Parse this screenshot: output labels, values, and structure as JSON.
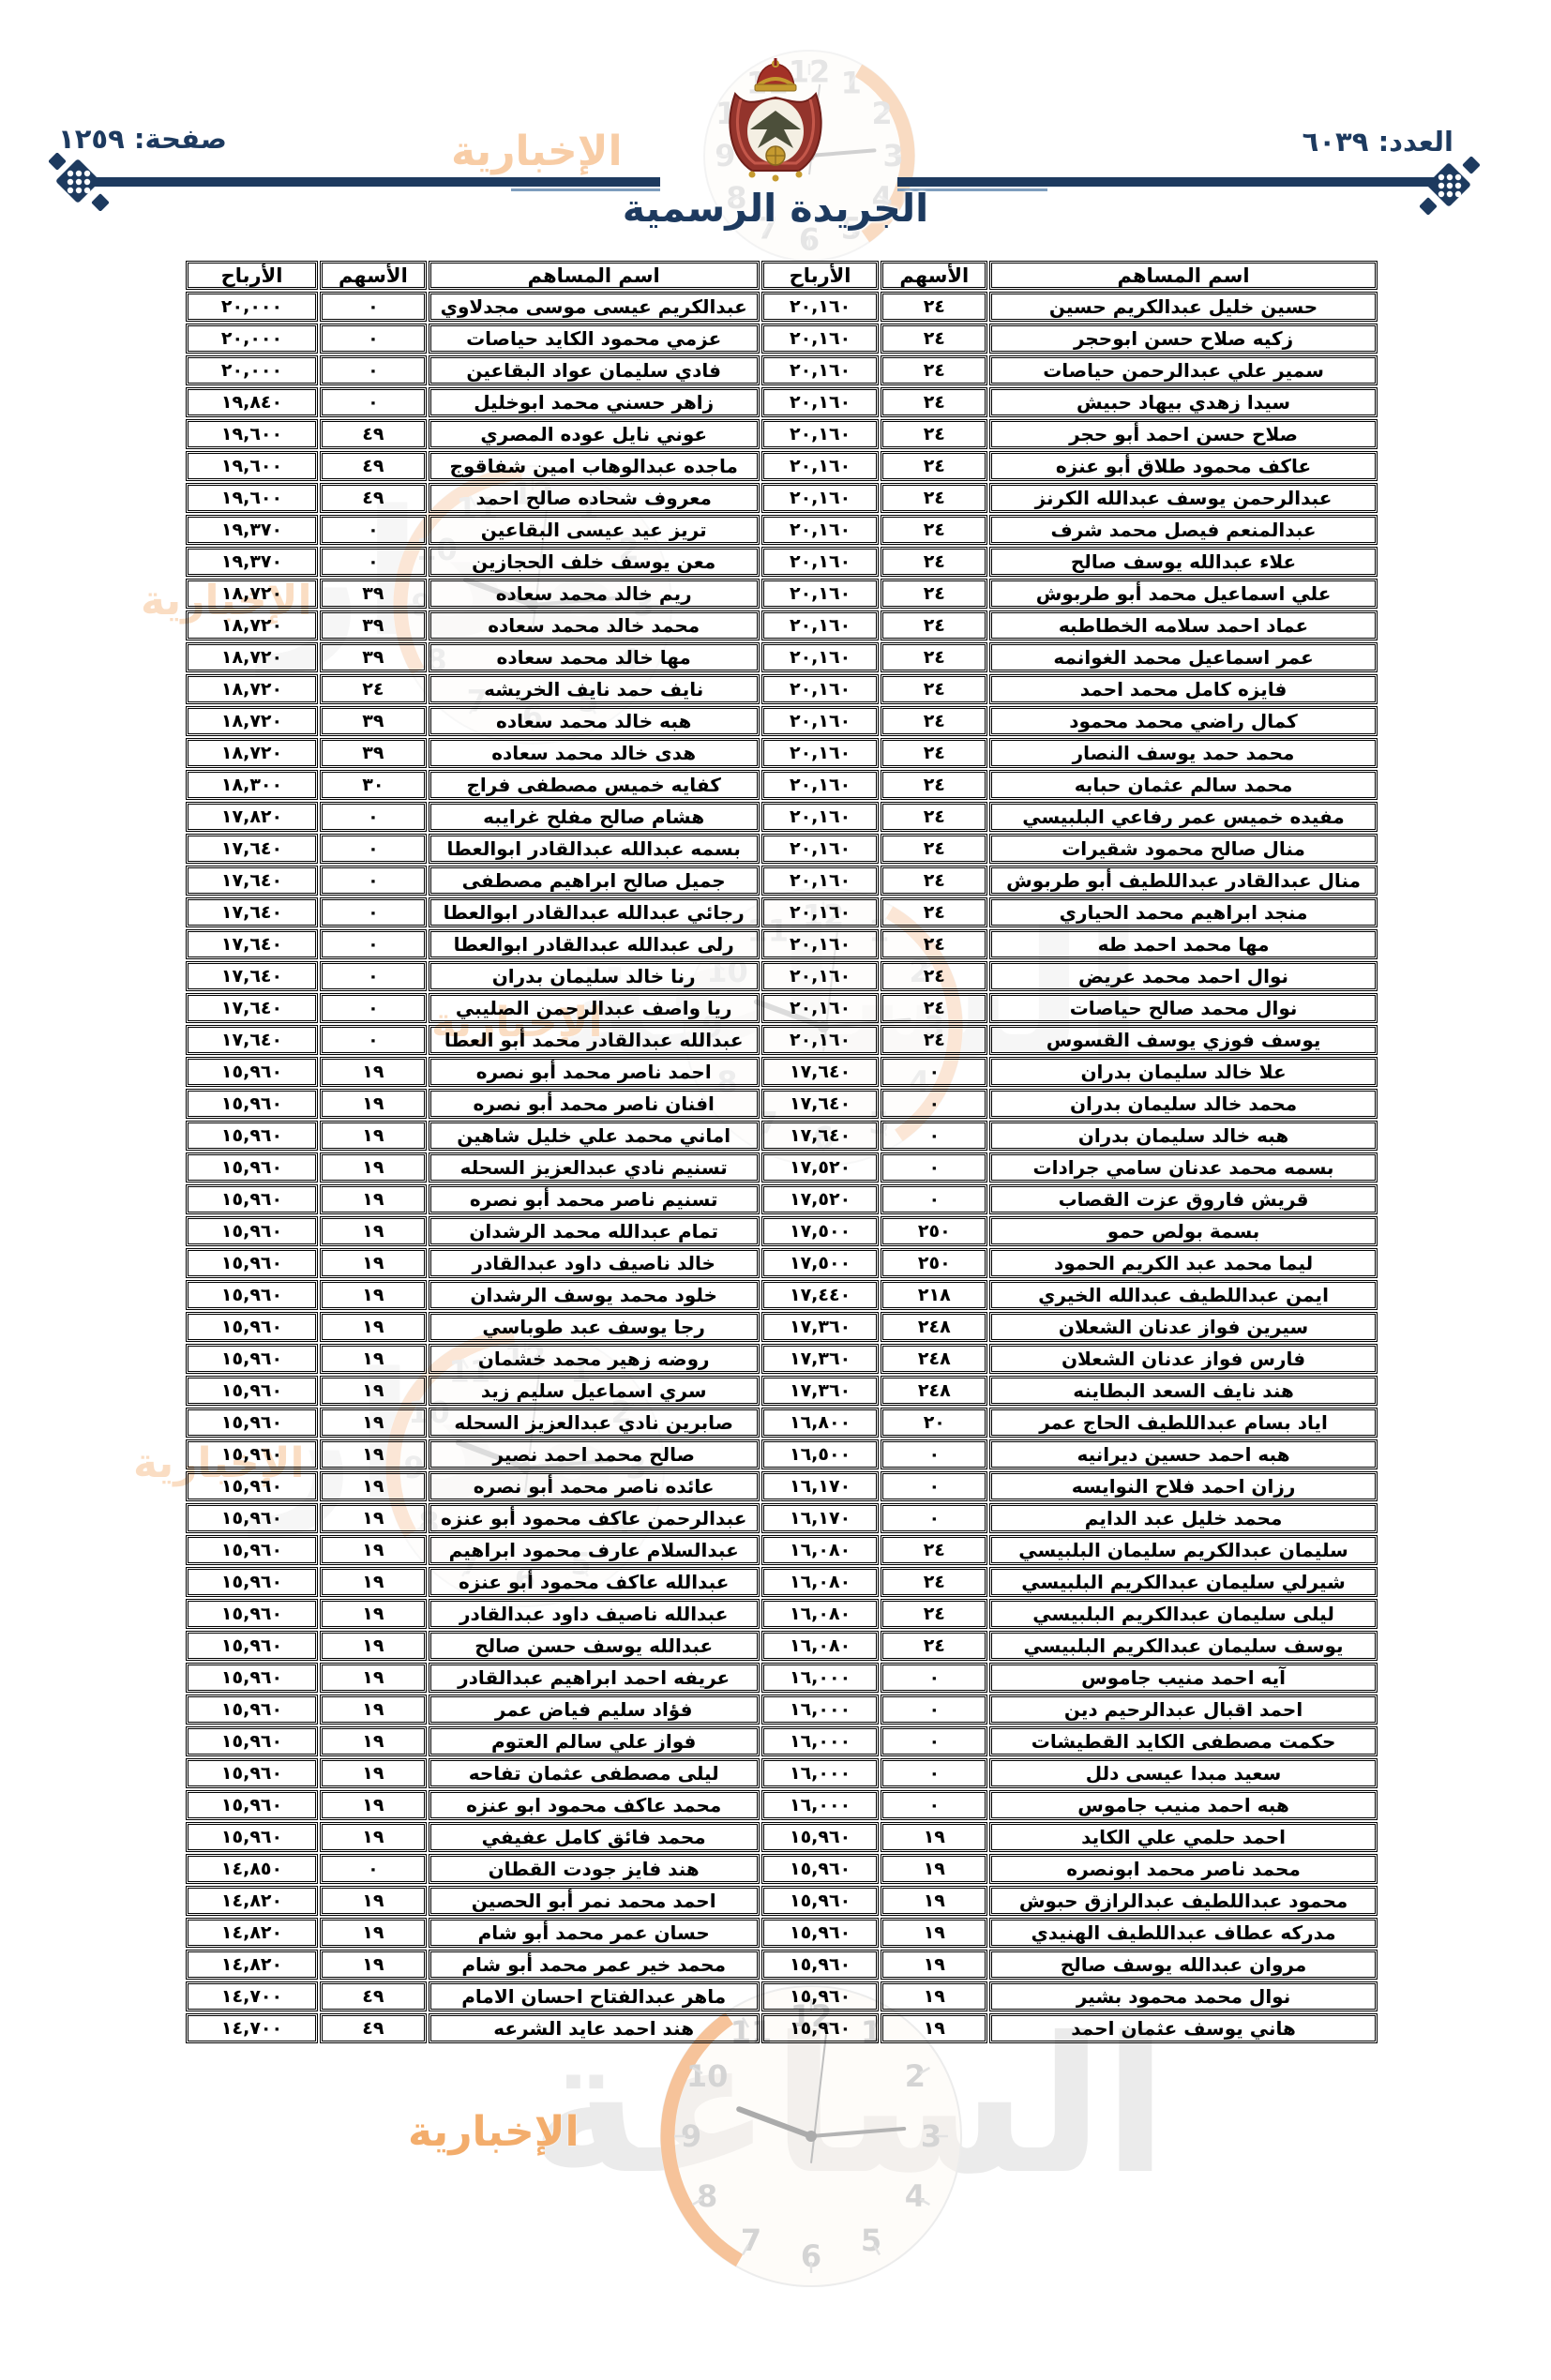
{
  "header": {
    "issue_label": "العدد: ٦٠٣٩",
    "page_label": "صفحة: ١٢٥٩",
    "gazette_title": "الجريدة الرسمية"
  },
  "watermark": {
    "brand_word_1": "مدار",
    "brand_word_2": "الساعة",
    "brand_sub": "الإخبارية",
    "clock_numerals": [
      "12",
      "1",
      "2",
      "3",
      "4",
      "5",
      "6",
      "7",
      "8",
      "9",
      "10",
      "11"
    ]
  },
  "colors": {
    "navy": "#1d3a5f",
    "table_text": "#000000",
    "watermark_orange": "#f0923c",
    "watermark_gray": "#c4c4c4"
  },
  "table": {
    "col_headers": {
      "name": "اسم المساهم",
      "shares": "الأسهم",
      "profits": "الأرباح"
    },
    "rows": [
      {
        "r_name": "حسين خليل عبدالكريم حسين",
        "r_shares": "٢٤",
        "r_profits": "٢٠,١٦٠",
        "l_name": "عبدالكريم عيسى موسى مجدلاوي",
        "l_shares": "٠",
        "l_profits": "٢٠,٠٠٠"
      },
      {
        "r_name": "زكيه صلاح حسن ابوحجر",
        "r_shares": "٢٤",
        "r_profits": "٢٠,١٦٠",
        "l_name": "عزمي محمود الكايد حياصات",
        "l_shares": "٠",
        "l_profits": "٢٠,٠٠٠"
      },
      {
        "r_name": "سمير علي عبدالرحمن حياصات",
        "r_shares": "٢٤",
        "r_profits": "٢٠,١٦٠",
        "l_name": "فادي سليمان عواد البقاعين",
        "l_shares": "٠",
        "l_profits": "٢٠,٠٠٠"
      },
      {
        "r_name": "سيدا زهدي بيهاد حبيش",
        "r_shares": "٢٤",
        "r_profits": "٢٠,١٦٠",
        "l_name": "زاهر حسني محمد ابوخليل",
        "l_shares": "٠",
        "l_profits": "١٩,٨٤٠"
      },
      {
        "r_name": "صلاح حسن احمد أبو حجر",
        "r_shares": "٢٤",
        "r_profits": "٢٠,١٦٠",
        "l_name": "عوني نايل عوده المصري",
        "l_shares": "٤٩",
        "l_profits": "١٩,٦٠٠"
      },
      {
        "r_name": "عاكف محمود طلاق أبو عنزه",
        "r_shares": "٢٤",
        "r_profits": "٢٠,١٦٠",
        "l_name": "ماجده عبدالوهاب امين شفاقوج",
        "l_shares": "٤٩",
        "l_profits": "١٩,٦٠٠"
      },
      {
        "r_name": "عبدالرحمن يوسف عبدالله الكرنز",
        "r_shares": "٢٤",
        "r_profits": "٢٠,١٦٠",
        "l_name": "معروف شحاده صالح احمد",
        "l_shares": "٤٩",
        "l_profits": "١٩,٦٠٠"
      },
      {
        "r_name": "عبدالمنعم فيصل محمد شرف",
        "r_shares": "٢٤",
        "r_profits": "٢٠,١٦٠",
        "l_name": "تريز عيد عيسى البقاعين",
        "l_shares": "٠",
        "l_profits": "١٩,٣٧٠"
      },
      {
        "r_name": "علاء عبدالله يوسف صالح",
        "r_shares": "٢٤",
        "r_profits": "٢٠,١٦٠",
        "l_name": "معن يوسف خلف الحجازين",
        "l_shares": "٠",
        "l_profits": "١٩,٣٧٠"
      },
      {
        "r_name": "علي اسماعيل محمد أبو طربوش",
        "r_shares": "٢٤",
        "r_profits": "٢٠,١٦٠",
        "l_name": "ريم خالد محمد سعاده",
        "l_shares": "٣٩",
        "l_profits": "١٨,٧٢٠"
      },
      {
        "r_name": "عماد احمد سلامه الخطاطبه",
        "r_shares": "٢٤",
        "r_profits": "٢٠,١٦٠",
        "l_name": "محمد خالد محمد سعاده",
        "l_shares": "٣٩",
        "l_profits": "١٨,٧٢٠"
      },
      {
        "r_name": "عمر اسماعيل محمد الغوانمه",
        "r_shares": "٢٤",
        "r_profits": "٢٠,١٦٠",
        "l_name": "مها خالد محمد سعاده",
        "l_shares": "٣٩",
        "l_profits": "١٨,٧٢٠"
      },
      {
        "r_name": "فايزه كامل محمد احمد",
        "r_shares": "٢٤",
        "r_profits": "٢٠,١٦٠",
        "l_name": "نايف حمد نايف الخريشه",
        "l_shares": "٢٤",
        "l_profits": "١٨,٧٢٠"
      },
      {
        "r_name": "كمال راضي محمد محمود",
        "r_shares": "٢٤",
        "r_profits": "٢٠,١٦٠",
        "l_name": "هبه خالد محمد سعاده",
        "l_shares": "٣٩",
        "l_profits": "١٨,٧٢٠"
      },
      {
        "r_name": "محمد حمد يوسف النصار",
        "r_shares": "٢٤",
        "r_profits": "٢٠,١٦٠",
        "l_name": "هدى خالد محمد سعاده",
        "l_shares": "٣٩",
        "l_profits": "١٨,٧٢٠"
      },
      {
        "r_name": "محمد سالم عثمان حبابه",
        "r_shares": "٢٤",
        "r_profits": "٢٠,١٦٠",
        "l_name": "كفايه خميس مصطفى فراج",
        "l_shares": "٣٠",
        "l_profits": "١٨,٣٠٠"
      },
      {
        "r_name": "مفيده خميس عمر رفاعي البلبيسي",
        "r_shares": "٢٤",
        "r_profits": "٢٠,١٦٠",
        "l_name": "هشام صالح مفلح غرايبه",
        "l_shares": "٠",
        "l_profits": "١٧,٨٢٠"
      },
      {
        "r_name": "منال صالح محمود شقيرات",
        "r_shares": "٢٤",
        "r_profits": "٢٠,١٦٠",
        "l_name": "بسمه عبدالله عبدالقادر ابوالعطا",
        "l_shares": "٠",
        "l_profits": "١٧,٦٤٠"
      },
      {
        "r_name": "منال عبدالقادر عبداللطيف أبو طربوش",
        "r_shares": "٢٤",
        "r_profits": "٢٠,١٦٠",
        "l_name": "جميل صالح ابراهيم مصطفى",
        "l_shares": "٠",
        "l_profits": "١٧,٦٤٠"
      },
      {
        "r_name": "منجد ابراهيم محمد الحياري",
        "r_shares": "٢٤",
        "r_profits": "٢٠,١٦٠",
        "l_name": "رجائي عبدالله عبدالقادر ابوالعطا",
        "l_shares": "٠",
        "l_profits": "١٧,٦٤٠"
      },
      {
        "r_name": "مها محمد احمد طه",
        "r_shares": "٢٤",
        "r_profits": "٢٠,١٦٠",
        "l_name": "رلى عبدالله عبدالقادر ابوالعطا",
        "l_shares": "٠",
        "l_profits": "١٧,٦٤٠"
      },
      {
        "r_name": "نوال احمد محمد عريض",
        "r_shares": "٢٤",
        "r_profits": "٢٠,١٦٠",
        "l_name": "رنا خالد سليمان بدران",
        "l_shares": "٠",
        "l_profits": "١٧,٦٤٠"
      },
      {
        "r_name": "نوال محمد صالح حياصات",
        "r_shares": "٢٤",
        "r_profits": "٢٠,١٦٠",
        "l_name": "ريا واصف عبدالرحمن الصليبي",
        "l_shares": "٠",
        "l_profits": "١٧,٦٤٠"
      },
      {
        "r_name": "يوسف فوزي يوسف القسوس",
        "r_shares": "٢٤",
        "r_profits": "٢٠,١٦٠",
        "l_name": "عبدالله عبدالقادر محمد أبو العطا",
        "l_shares": "٠",
        "l_profits": "١٧,٦٤٠"
      },
      {
        "r_name": "علا خالد سليمان بدران",
        "r_shares": "٠",
        "r_profits": "١٧,٦٤٠",
        "l_name": "احمد ناصر محمد أبو نصره",
        "l_shares": "١٩",
        "l_profits": "١٥,٩٦٠"
      },
      {
        "r_name": "محمد خالد سليمان بدران",
        "r_shares": "٠",
        "r_profits": "١٧,٦٤٠",
        "l_name": "افنان ناصر محمد أبو نصره",
        "l_shares": "١٩",
        "l_profits": "١٥,٩٦٠"
      },
      {
        "r_name": "هبه خالد سليمان بدران",
        "r_shares": "٠",
        "r_profits": "١٧,٦٤٠",
        "l_name": "اماني محمد علي خليل شاهين",
        "l_shares": "١٩",
        "l_profits": "١٥,٩٦٠"
      },
      {
        "r_name": "بسمه محمد عدنان سامي جرادات",
        "r_shares": "٠",
        "r_profits": "١٧,٥٢٠",
        "l_name": "تسنيم نادي عبدالعزيز السحله",
        "l_shares": "١٩",
        "l_profits": "١٥,٩٦٠"
      },
      {
        "r_name": "قريش فاروق عزت القصاب",
        "r_shares": "٠",
        "r_profits": "١٧,٥٢٠",
        "l_name": "تسنيم ناصر محمد أبو نصره",
        "l_shares": "١٩",
        "l_profits": "١٥,٩٦٠"
      },
      {
        "r_name": "بسمة بولص حمو",
        "r_shares": "٢٥٠",
        "r_profits": "١٧,٥٠٠",
        "l_name": "تمام عبدالله محمد الرشدان",
        "l_shares": "١٩",
        "l_profits": "١٥,٩٦٠"
      },
      {
        "r_name": "ليما محمد عبد الكريم الحمود",
        "r_shares": "٢٥٠",
        "r_profits": "١٧,٥٠٠",
        "l_name": "خالد ناصيف داود عبدالقادر",
        "l_shares": "١٩",
        "l_profits": "١٥,٩٦٠"
      },
      {
        "r_name": "ايمن عبداللطيف عبدالله الخيري",
        "r_shares": "٢١٨",
        "r_profits": "١٧,٤٤٠",
        "l_name": "خلود محمد يوسف الرشدان",
        "l_shares": "١٩",
        "l_profits": "١٥,٩٦٠"
      },
      {
        "r_name": "سيرين فواز عدنان الشعلان",
        "r_shares": "٢٤٨",
        "r_profits": "١٧,٣٦٠",
        "l_name": "رجا يوسف عبد طوباسي",
        "l_shares": "١٩",
        "l_profits": "١٥,٩٦٠"
      },
      {
        "r_name": "فارس فواز عدنان الشعلان",
        "r_shares": "٢٤٨",
        "r_profits": "١٧,٣٦٠",
        "l_name": "روضه زهير محمد خشمان",
        "l_shares": "١٩",
        "l_profits": "١٥,٩٦٠"
      },
      {
        "r_name": "هند نايف السعد البطاينه",
        "r_shares": "٢٤٨",
        "r_profits": "١٧,٣٦٠",
        "l_name": "سري اسماعيل سليم زيد",
        "l_shares": "١٩",
        "l_profits": "١٥,٩٦٠"
      },
      {
        "r_name": "اياد بسام عبداللطيف الحاج عمر",
        "r_shares": "٢٠",
        "r_profits": "١٦,٨٠٠",
        "l_name": "صابرين نادي عبدالعزيز السحله",
        "l_shares": "١٩",
        "l_profits": "١٥,٩٦٠"
      },
      {
        "r_name": "هبه احمد حسين ديرانيه",
        "r_shares": "٠",
        "r_profits": "١٦,٥٠٠",
        "l_name": "صالح محمد احمد نصير",
        "l_shares": "١٩",
        "l_profits": "١٥,٩٦٠"
      },
      {
        "r_name": "رزان احمد فلاح النوايسه",
        "r_shares": "٠",
        "r_profits": "١٦,١٧٠",
        "l_name": "عائده ناصر محمد أبو نصره",
        "l_shares": "١٩",
        "l_profits": "١٥,٩٦٠"
      },
      {
        "r_name": "محمد خليل عبد الدايم",
        "r_shares": "٠",
        "r_profits": "١٦,١٧٠",
        "l_name": "عبدالرحمن عاكف محمود أبو عنزه",
        "l_shares": "١٩",
        "l_profits": "١٥,٩٦٠"
      },
      {
        "r_name": "سليمان عبدالكريم سليمان البلبيسي",
        "r_shares": "٢٤",
        "r_profits": "١٦,٠٨٠",
        "l_name": "عبدالسلام عارف محمود ابراهيم",
        "l_shares": "١٩",
        "l_profits": "١٥,٩٦٠"
      },
      {
        "r_name": "شيرلي سليمان عبدالكريم البلبيسي",
        "r_shares": "٢٤",
        "r_profits": "١٦,٠٨٠",
        "l_name": "عبدالله عاكف محمود أبو عنزه",
        "l_shares": "١٩",
        "l_profits": "١٥,٩٦٠"
      },
      {
        "r_name": "ليلى سليمان عبدالكريم البلبيسي",
        "r_shares": "٢٤",
        "r_profits": "١٦,٠٨٠",
        "l_name": "عبدالله ناصيف داود عبدالقادر",
        "l_shares": "١٩",
        "l_profits": "١٥,٩٦٠"
      },
      {
        "r_name": "يوسف سليمان عبدالكريم البلبيسي",
        "r_shares": "٢٤",
        "r_profits": "١٦,٠٨٠",
        "l_name": "عبدالله يوسف حسن صالح",
        "l_shares": "١٩",
        "l_profits": "١٥,٩٦٠"
      },
      {
        "r_name": "آيه احمد منيب جاموس",
        "r_shares": "٠",
        "r_profits": "١٦,٠٠٠",
        "l_name": "عريفه احمد ابراهيم عبدالقادر",
        "l_shares": "١٩",
        "l_profits": "١٥,٩٦٠"
      },
      {
        "r_name": "احمد اقبال عبدالرحيم دين",
        "r_shares": "٠",
        "r_profits": "١٦,٠٠٠",
        "l_name": "فؤاد سليم فياض عمر",
        "l_shares": "١٩",
        "l_profits": "١٥,٩٦٠"
      },
      {
        "r_name": "حكمت مصطفى الكايد القطيشات",
        "r_shares": "٠",
        "r_profits": "١٦,٠٠٠",
        "l_name": "فواز علي سالم العتوم",
        "l_shares": "١٩",
        "l_profits": "١٥,٩٦٠"
      },
      {
        "r_name": "سعيد مبدا عيسى دلل",
        "r_shares": "٠",
        "r_profits": "١٦,٠٠٠",
        "l_name": "ليلى مصطفى عثمان تفاحه",
        "l_shares": "١٩",
        "l_profits": "١٥,٩٦٠"
      },
      {
        "r_name": "هبه احمد منيب جاموس",
        "r_shares": "٠",
        "r_profits": "١٦,٠٠٠",
        "l_name": "محمد عاكف محمود ابو عنزه",
        "l_shares": "١٩",
        "l_profits": "١٥,٩٦٠"
      },
      {
        "r_name": "احمد حلمي علي الكايد",
        "r_shares": "١٩",
        "r_profits": "١٥,٩٦٠",
        "l_name": "محمد فائق كامل عفيفي",
        "l_shares": "١٩",
        "l_profits": "١٥,٩٦٠"
      },
      {
        "r_name": "محمد ناصر محمد ابونصره",
        "r_shares": "١٩",
        "r_profits": "١٥,٩٦٠",
        "l_name": "هند فايز جودت القطان",
        "l_shares": "٠",
        "l_profits": "١٤,٨٥٠"
      },
      {
        "r_name": "محمود عبداللطيف عبدالرازق حبوش",
        "r_shares": "١٩",
        "r_profits": "١٥,٩٦٠",
        "l_name": "احمد محمد نمر أبو الحصين",
        "l_shares": "١٩",
        "l_profits": "١٤,٨٢٠"
      },
      {
        "r_name": "مدركه عطاف عبداللطيف الهنيدي",
        "r_shares": "١٩",
        "r_profits": "١٥,٩٦٠",
        "l_name": "حسان عمر محمد أبو شام",
        "l_shares": "١٩",
        "l_profits": "١٤,٨٢٠"
      },
      {
        "r_name": "مروان عبدالله يوسف صالح",
        "r_shares": "١٩",
        "r_profits": "١٥,٩٦٠",
        "l_name": "محمد خير عمر محمد أبو شام",
        "l_shares": "١٩",
        "l_profits": "١٤,٨٢٠"
      },
      {
        "r_name": "نوال محمد محمود بشير",
        "r_shares": "١٩",
        "r_profits": "١٥,٩٦٠",
        "l_name": "ماهر عبدالفتاح احسان الامام",
        "l_shares": "٤٩",
        "l_profits": "١٤,٧٠٠"
      },
      {
        "r_name": "هاني يوسف عثمان احمد",
        "r_shares": "١٩",
        "r_profits": "١٥,٩٦٠",
        "l_name": "هند احمد عايد الشرعه",
        "l_shares": "٤٩",
        "l_profits": "١٤,٧٠٠"
      }
    ]
  }
}
